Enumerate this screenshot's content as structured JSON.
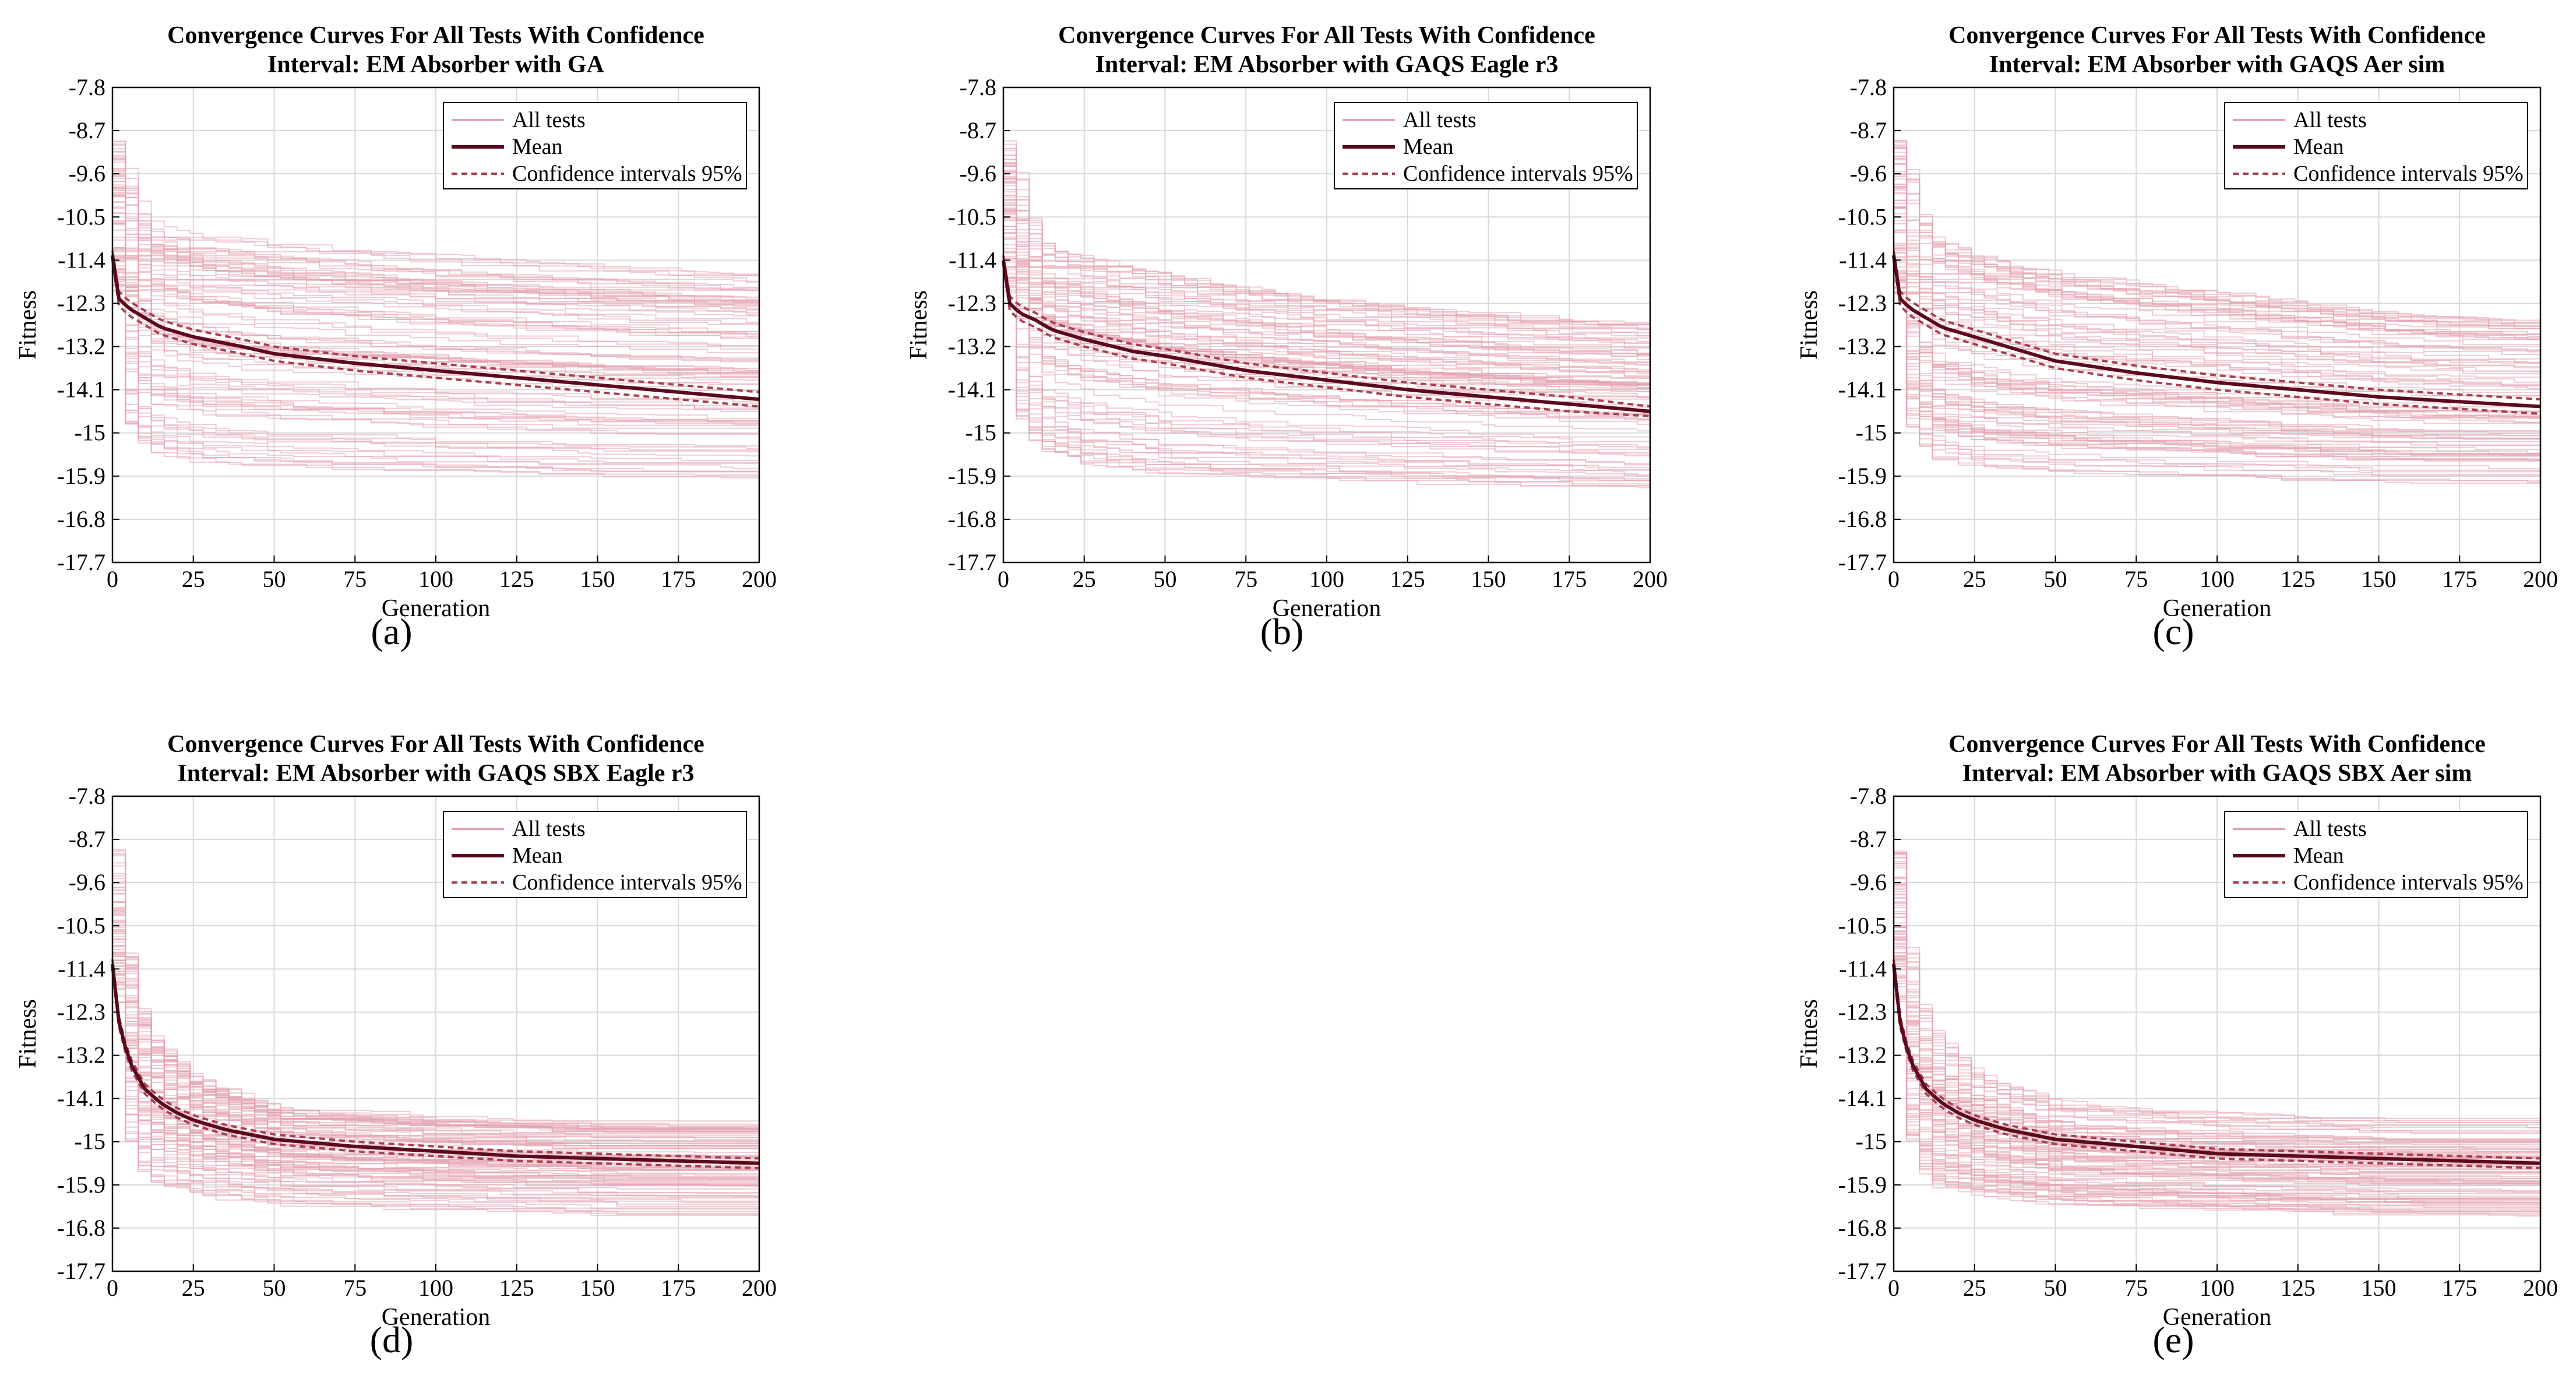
{
  "colors": {
    "all_tests": "#e3a3b1",
    "mean": "#5a0a1c",
    "ci": "#a6414f",
    "grid": "#d9d9d9"
  },
  "chart_data": [
    {
      "type": "line",
      "panel": "a",
      "caption": "(a)",
      "title_line1": "Convergence Curves For All Tests With Confidence",
      "title_line2": "Interval: EM Absorber with GA",
      "xlabel": "Generation",
      "ylabel": "Fitness",
      "xlim": [
        0,
        200
      ],
      "ylim": [
        -17.7,
        -7.8
      ],
      "xticks": [
        0,
        25,
        50,
        75,
        100,
        125,
        150,
        175,
        200
      ],
      "ytick_labels": [
        "-7.8",
        "-8.7",
        "-9.6",
        "-10.5",
        "-11.4",
        "-12.3",
        "-13.2",
        "-14.1",
        "-15",
        "-15.9",
        "-16.8",
        "-17.7"
      ],
      "grid": true,
      "legend": {
        "position": "top-right",
        "entries": [
          "All tests",
          "Mean",
          "Confidence intervals 95%"
        ]
      },
      "series": [
        {
          "name": "Mean",
          "x": [
            0,
            2,
            5,
            10,
            15,
            25,
            40,
            50,
            75,
            100,
            125,
            150,
            175,
            200
          ],
          "values": [
            -11.3,
            -12.2,
            -12.4,
            -12.6,
            -12.8,
            -13.0,
            -13.2,
            -13.35,
            -13.55,
            -13.7,
            -13.85,
            -14.0,
            -14.15,
            -14.3
          ]
        },
        {
          "name": "Confidence intervals 95% (upper)",
          "x": [
            0,
            2,
            5,
            10,
            15,
            25,
            40,
            50,
            75,
            100,
            125,
            150,
            175,
            200
          ],
          "values": [
            -11.2,
            -12.05,
            -12.25,
            -12.45,
            -12.65,
            -12.85,
            -13.05,
            -13.2,
            -13.4,
            -13.55,
            -13.7,
            -13.85,
            -14.0,
            -14.15
          ]
        },
        {
          "name": "Confidence intervals 95% (lower)",
          "x": [
            0,
            2,
            5,
            10,
            15,
            25,
            40,
            50,
            75,
            100,
            125,
            150,
            175,
            200
          ],
          "values": [
            -11.4,
            -12.35,
            -12.55,
            -12.75,
            -12.95,
            -13.15,
            -13.35,
            -13.5,
            -13.7,
            -13.85,
            -14.0,
            -14.15,
            -14.3,
            -14.45
          ]
        }
      ],
      "all_tests_band": {
        "x": [
          0,
          10,
          25,
          50,
          100,
          150,
          200
        ],
        "upper": [
          -8.5,
          -10.4,
          -10.8,
          -11.0,
          -11.3,
          -11.5,
          -11.7
        ],
        "lower": [
          -14.6,
          -15.4,
          -15.6,
          -15.7,
          -15.8,
          -15.9,
          -15.9
        ]
      }
    },
    {
      "type": "line",
      "panel": "b",
      "caption": "(b)",
      "title_line1": "Convergence Curves For All Tests With Confidence",
      "title_line2": "Interval: EM Absorber with GAQS Eagle r3",
      "xlabel": "Generation",
      "ylabel": "Fitness",
      "xlim": [
        0,
        200
      ],
      "ylim": [
        -17.7,
        -7.8
      ],
      "xticks": [
        0,
        25,
        50,
        75,
        100,
        125,
        150,
        175,
        200
      ],
      "ytick_labels": [
        "-7.8",
        "-8.7",
        "-9.6",
        "-10.5",
        "-11.4",
        "-12.3",
        "-13.2",
        "-14.1",
        "-15",
        "-15.9",
        "-16.8",
        "-17.7"
      ],
      "grid": true,
      "legend": {
        "position": "top-right",
        "entries": [
          "All tests",
          "Mean",
          "Confidence intervals 95%"
        ]
      },
      "series": [
        {
          "name": "Mean",
          "x": [
            0,
            2,
            5,
            10,
            15,
            25,
            40,
            50,
            75,
            100,
            125,
            150,
            175,
            200
          ],
          "values": [
            -11.4,
            -12.3,
            -12.5,
            -12.65,
            -12.85,
            -13.05,
            -13.3,
            -13.4,
            -13.7,
            -13.9,
            -14.1,
            -14.25,
            -14.4,
            -14.55
          ]
        },
        {
          "name": "Confidence intervals 95% (upper)",
          "x": [
            0,
            2,
            5,
            10,
            15,
            25,
            40,
            50,
            75,
            100,
            125,
            150,
            175,
            200
          ],
          "values": [
            -11.3,
            -12.15,
            -12.35,
            -12.5,
            -12.7,
            -12.9,
            -13.15,
            -13.25,
            -13.55,
            -13.75,
            -13.95,
            -14.1,
            -14.25,
            -14.45
          ]
        },
        {
          "name": "Confidence intervals 95% (lower)",
          "x": [
            0,
            2,
            5,
            10,
            15,
            25,
            40,
            50,
            75,
            100,
            125,
            150,
            175,
            200
          ],
          "values": [
            -11.5,
            -12.45,
            -12.65,
            -12.8,
            -13.0,
            -13.2,
            -13.45,
            -13.55,
            -13.85,
            -14.05,
            -14.25,
            -14.4,
            -14.55,
            -14.65
          ]
        }
      ],
      "all_tests_band": {
        "x": [
          0,
          10,
          25,
          50,
          100,
          150,
          200
        ],
        "upper": [
          -8.5,
          -11.0,
          -11.3,
          -11.7,
          -12.2,
          -12.5,
          -12.7
        ],
        "lower": [
          -14.4,
          -15.4,
          -15.7,
          -15.9,
          -16.0,
          -16.1,
          -16.2
        ]
      }
    },
    {
      "type": "line",
      "panel": "c",
      "caption": "(c)",
      "title_line1": "Convergence Curves For All Tests With Confidence",
      "title_line2": "Interval: EM Absorber with GAQS Aer sim",
      "xlabel": "Generation",
      "ylabel": "Fitness",
      "xlim": [
        0,
        200
      ],
      "ylim": [
        -17.7,
        -7.8
      ],
      "xticks": [
        0,
        25,
        50,
        75,
        100,
        125,
        150,
        175,
        200
      ],
      "ytick_labels": [
        "-7.8",
        "-8.7",
        "-9.6",
        "-10.5",
        "-11.4",
        "-12.3",
        "-13.2",
        "-14.1",
        "-15",
        "-15.9",
        "-16.8",
        "-17.7"
      ],
      "grid": true,
      "legend": {
        "position": "top-right",
        "entries": [
          "All tests",
          "Mean",
          "Confidence intervals 95%"
        ]
      },
      "series": [
        {
          "name": "Mean",
          "x": [
            0,
            2,
            5,
            10,
            15,
            25,
            40,
            50,
            75,
            100,
            125,
            150,
            175,
            200
          ],
          "values": [
            -11.3,
            -12.2,
            -12.4,
            -12.6,
            -12.8,
            -13.0,
            -13.3,
            -13.5,
            -13.75,
            -13.95,
            -14.1,
            -14.25,
            -14.35,
            -14.45
          ]
        },
        {
          "name": "Confidence intervals 95% (upper)",
          "x": [
            0,
            2,
            5,
            10,
            15,
            25,
            40,
            50,
            75,
            100,
            125,
            150,
            175,
            200
          ],
          "values": [
            -11.2,
            -12.05,
            -12.25,
            -12.45,
            -12.65,
            -12.85,
            -13.15,
            -13.35,
            -13.6,
            -13.8,
            -13.95,
            -14.1,
            -14.2,
            -14.3
          ]
        },
        {
          "name": "Confidence intervals 95% (lower)",
          "x": [
            0,
            2,
            5,
            10,
            15,
            25,
            40,
            50,
            75,
            100,
            125,
            150,
            175,
            200
          ],
          "values": [
            -11.4,
            -12.35,
            -12.55,
            -12.75,
            -12.95,
            -13.15,
            -13.45,
            -13.65,
            -13.9,
            -14.1,
            -14.25,
            -14.4,
            -14.5,
            -14.6
          ]
        }
      ],
      "all_tests_band": {
        "x": [
          0,
          10,
          25,
          50,
          100,
          150,
          200
        ],
        "upper": [
          -8.5,
          -10.8,
          -11.2,
          -11.6,
          -12.0,
          -12.4,
          -12.6
        ],
        "lower": [
          -14.6,
          -15.5,
          -15.7,
          -15.8,
          -15.9,
          -16.0,
          -16.0
        ]
      }
    },
    {
      "type": "line",
      "panel": "d",
      "caption": "(d)",
      "title_line1": "Convergence Curves For All Tests With Confidence",
      "title_line2": "Interval: EM Absorber with GAQS SBX Eagle r3",
      "xlabel": "Generation",
      "ylabel": "Fitness",
      "xlim": [
        0,
        200
      ],
      "ylim": [
        -17.7,
        -7.8
      ],
      "xticks": [
        0,
        25,
        50,
        75,
        100,
        125,
        150,
        175,
        200
      ],
      "ytick_labels": [
        "-7.8",
        "-8.7",
        "-9.6",
        "-10.5",
        "-11.4",
        "-12.3",
        "-13.2",
        "-14.1",
        "-15",
        "-15.9",
        "-16.8",
        "-17.7"
      ],
      "grid": true,
      "legend": {
        "position": "top-right",
        "entries": [
          "All tests",
          "Mean",
          "Confidence intervals 95%"
        ]
      },
      "series": [
        {
          "name": "Mean",
          "x": [
            0,
            2,
            5,
            10,
            15,
            20,
            25,
            35,
            50,
            75,
            100,
            125,
            150,
            175,
            200
          ],
          "values": [
            -11.3,
            -12.5,
            -13.3,
            -13.9,
            -14.2,
            -14.4,
            -14.55,
            -14.75,
            -14.95,
            -15.1,
            -15.2,
            -15.3,
            -15.35,
            -15.4,
            -15.45
          ]
        },
        {
          "name": "Confidence intervals 95% (upper)",
          "x": [
            0,
            2,
            5,
            10,
            15,
            20,
            25,
            35,
            50,
            75,
            100,
            125,
            150,
            175,
            200
          ],
          "values": [
            -11.2,
            -12.4,
            -13.2,
            -13.8,
            -14.1,
            -14.3,
            -14.45,
            -14.65,
            -14.85,
            -15.0,
            -15.1,
            -15.2,
            -15.25,
            -15.3,
            -15.35
          ]
        },
        {
          "name": "Confidence intervals 95% (lower)",
          "x": [
            0,
            2,
            5,
            10,
            15,
            20,
            25,
            35,
            50,
            75,
            100,
            125,
            150,
            175,
            200
          ],
          "values": [
            -11.4,
            -12.6,
            -13.4,
            -14.0,
            -14.3,
            -14.5,
            -14.65,
            -14.85,
            -15.05,
            -15.2,
            -15.3,
            -15.4,
            -15.45,
            -15.5,
            -15.55
          ]
        }
      ],
      "all_tests_band": {
        "x": [
          0,
          5,
          10,
          25,
          50,
          100,
          150,
          200
        ],
        "upper": [
          -8.5,
          -11.5,
          -12.6,
          -13.6,
          -14.2,
          -14.4,
          -14.5,
          -14.5
        ],
        "lower": [
          -14.0,
          -15.3,
          -15.9,
          -16.1,
          -16.3,
          -16.4,
          -16.5,
          -16.5
        ]
      }
    },
    {
      "type": "line",
      "panel": "e",
      "caption": "(e)",
      "title_line1": "Convergence Curves For All Tests With Confidence",
      "title_line2": "Interval: EM Absorber with GAQS SBX Aer sim",
      "xlabel": "Generation",
      "ylabel": "Fitness",
      "xlim": [
        0,
        200
      ],
      "ylim": [
        -17.7,
        -7.8
      ],
      "xticks": [
        0,
        25,
        50,
        75,
        100,
        125,
        150,
        175,
        200
      ],
      "ytick_labels": [
        "-7.8",
        "-8.7",
        "-9.6",
        "-10.5",
        "-11.4",
        "-12.3",
        "-13.2",
        "-14.1",
        "-15",
        "-15.9",
        "-16.8",
        "-17.7"
      ],
      "grid": true,
      "legend": {
        "position": "top-right",
        "entries": [
          "All tests",
          "Mean",
          "Confidence intervals 95%"
        ]
      },
      "series": [
        {
          "name": "Mean",
          "x": [
            0,
            2,
            5,
            10,
            15,
            20,
            25,
            35,
            50,
            75,
            100,
            125,
            150,
            175,
            200
          ],
          "values": [
            -11.3,
            -12.5,
            -13.3,
            -13.9,
            -14.2,
            -14.4,
            -14.55,
            -14.75,
            -14.95,
            -15.1,
            -15.25,
            -15.3,
            -15.35,
            -15.4,
            -15.45
          ]
        },
        {
          "name": "Confidence intervals 95% (upper)",
          "x": [
            0,
            2,
            5,
            10,
            15,
            20,
            25,
            35,
            50,
            75,
            100,
            125,
            150,
            175,
            200
          ],
          "values": [
            -11.2,
            -12.4,
            -13.2,
            -13.8,
            -14.1,
            -14.3,
            -14.45,
            -14.65,
            -14.85,
            -15.0,
            -15.15,
            -15.2,
            -15.25,
            -15.3,
            -15.35
          ]
        },
        {
          "name": "Confidence intervals 95% (lower)",
          "x": [
            0,
            2,
            5,
            10,
            15,
            20,
            25,
            35,
            50,
            75,
            100,
            125,
            150,
            175,
            200
          ],
          "values": [
            -11.4,
            -12.6,
            -13.4,
            -14.0,
            -14.3,
            -14.5,
            -14.65,
            -14.85,
            -15.05,
            -15.2,
            -15.35,
            -15.4,
            -15.45,
            -15.5,
            -15.55
          ]
        }
      ],
      "all_tests_band": {
        "x": [
          0,
          5,
          10,
          25,
          50,
          100,
          150,
          200
        ],
        "upper": [
          -8.5,
          -11.5,
          -12.6,
          -13.6,
          -14.2,
          -14.4,
          -14.5,
          -14.5
        ],
        "lower": [
          -14.0,
          -15.3,
          -15.9,
          -16.1,
          -16.3,
          -16.4,
          -16.5,
          -16.5
        ]
      }
    }
  ]
}
